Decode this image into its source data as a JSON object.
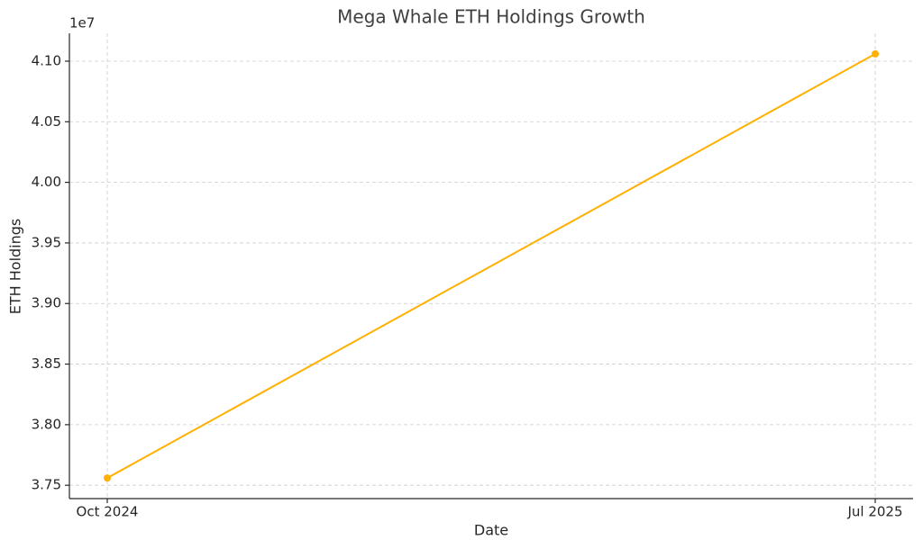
{
  "chart_data": {
    "type": "line",
    "title": "Mega Whale ETH Holdings Growth",
    "x_label": "Date",
    "y_label": "ETH Holdings",
    "y_offset_label": "1e7",
    "categories": [
      "Oct 2024",
      "Jul 2025"
    ],
    "values": [
      37560000,
      41060000
    ],
    "color": "#ffb000",
    "ylim": [
      37390000,
      41230000
    ],
    "yticks": [
      {
        "value": 37500000,
        "label": "3.75"
      },
      {
        "value": 38000000,
        "label": "3.80"
      },
      {
        "value": 38500000,
        "label": "3.85"
      },
      {
        "value": 39000000,
        "label": "3.90"
      },
      {
        "value": 39500000,
        "label": "3.95"
      },
      {
        "value": 40000000,
        "label": "4.00"
      },
      {
        "value": 40500000,
        "label": "4.05"
      },
      {
        "value": 41000000,
        "label": "4.10"
      }
    ],
    "grid": true
  }
}
